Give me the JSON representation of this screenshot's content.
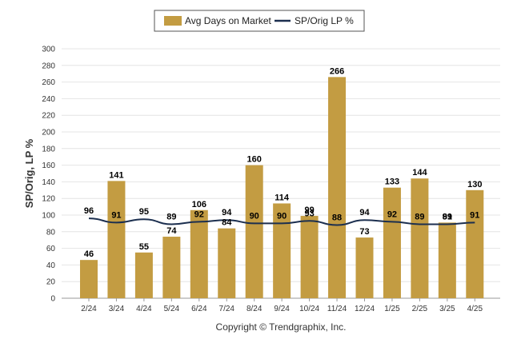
{
  "chart_data": {
    "type": "bar",
    "categories": [
      "2/24",
      "3/24",
      "4/24",
      "5/24",
      "6/24",
      "7/24",
      "8/24",
      "9/24",
      "10/24",
      "11/24",
      "12/24",
      "1/25",
      "2/25",
      "3/25",
      "4/25"
    ],
    "series": [
      {
        "name": "Avg Days on Market",
        "type": "bar",
        "color": "#c39c42",
        "values": [
          46,
          141,
          55,
          74,
          106,
          84,
          160,
          114,
          99,
          266,
          73,
          133,
          144,
          91,
          130
        ]
      },
      {
        "name": "SP/Orig LP %",
        "type": "line",
        "color": "#1c2f4f",
        "values": [
          96,
          91,
          95,
          89,
          92,
          94,
          90,
          90,
          93,
          88,
          94,
          92,
          89,
          89,
          91
        ]
      }
    ],
    "ylabel": "SP/Orig, LP %",
    "xlabel": "",
    "ylim": [
      0,
      300
    ],
    "yticks": [
      0,
      20,
      40,
      60,
      80,
      100,
      120,
      140,
      160,
      180,
      200,
      220,
      240,
      260,
      280,
      300
    ],
    "grid": true,
    "legend_position": "top-center"
  },
  "footer": {
    "copyright": "Copyright © Trendgraphix, Inc."
  }
}
